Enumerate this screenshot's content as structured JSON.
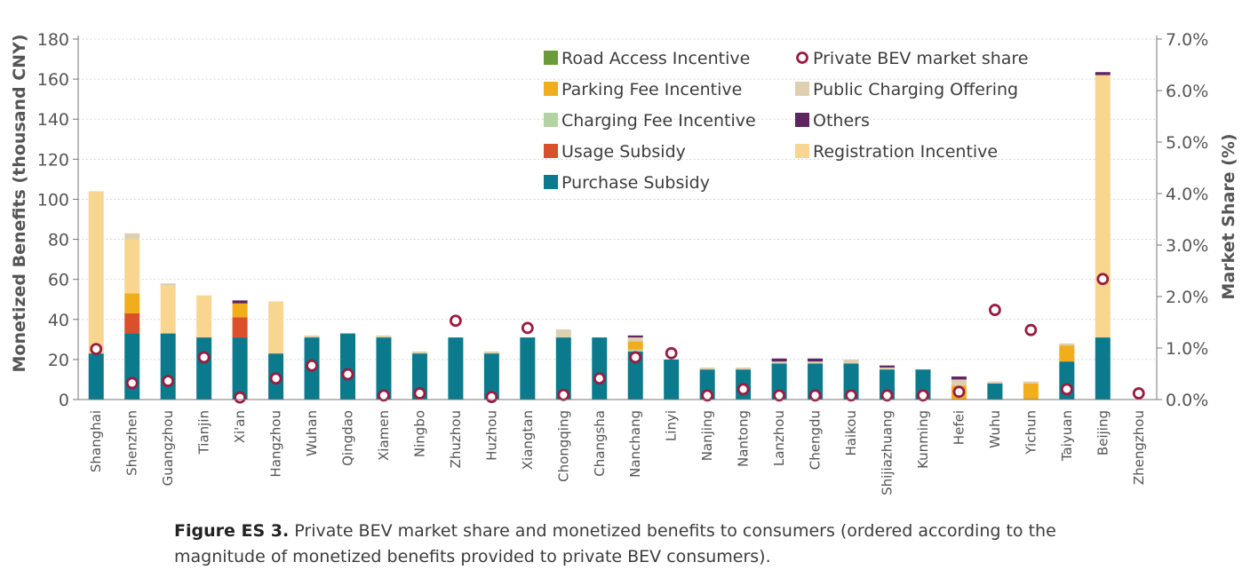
{
  "caption": {
    "label": "Figure ES 3.",
    "text": "Private BEV market share and monetized benefits to consumers (ordered according to the magnitude of monetized benefits provided to private BEV consumers)."
  },
  "colors": {
    "Purchase Subsidy": "#0b7a8c",
    "Usage Subsidy": "#d9502b",
    "Charging Fee Incentive": "#b4d3a3",
    "Parking Fee Incentive": "#f2ad1d",
    "Road Access Incentive": "#6a9a3a",
    "Registration Incentive": "#f8d690",
    "Public Charging Offering": "#ddcfb0",
    "Others": "#5e2561",
    "Private BEV market share": "#9b1b3f"
  },
  "chart_data": {
    "type": "bar",
    "stacked": true,
    "xlabel": "",
    "ylabel": "Monetized Benefits (thousand CNY)",
    "y2label": "Market Share (%)",
    "ylim": [
      0,
      180
    ],
    "yticks": [
      0,
      20,
      40,
      60,
      80,
      100,
      120,
      140,
      160,
      180
    ],
    "y2lim": [
      0,
      7.0
    ],
    "y2ticks": [
      "0.0%",
      "1.0%",
      "2.0%",
      "3.0%",
      "4.0%",
      "5.0%",
      "6.0%",
      "7.0%"
    ],
    "grid": true,
    "legend_position": "top-right",
    "legend_order": [
      "Road Access Incentive",
      "Private BEV market share",
      "Parking Fee Incentive",
      "Public Charging Offering",
      "Charging Fee Incentive",
      "Others",
      "Usage Subsidy",
      "Registration Incentive",
      "Purchase Subsidy"
    ],
    "categories": [
      "Shanghai",
      "Shenzhen",
      "Guangzhou",
      "Tianjin",
      "Xi'an",
      "Hangzhou",
      "Wuhan",
      "Qingdao",
      "Xiamen",
      "Ningbo",
      "Zhuzhou",
      "Huzhou",
      "Xiangtan",
      "Chongqing",
      "Changsha",
      "Nanchang",
      "Linyi",
      "Nanjing",
      "Nantong",
      "Lanzhou",
      "Chengdu",
      "Haikou",
      "Shijiazhuang",
      "Kunming",
      "Hefei",
      "Wuhu",
      "Yichun",
      "Taiyuan",
      "Beijing",
      "Zhengzhou"
    ],
    "series": [
      {
        "name": "Purchase Subsidy",
        "values": [
          23,
          33,
          33,
          31,
          31,
          23,
          31,
          33,
          31,
          23,
          31,
          23,
          31,
          31,
          31,
          24,
          20,
          15,
          15,
          18,
          18,
          18,
          15,
          15,
          0,
          8,
          0,
          19,
          31,
          0
        ]
      },
      {
        "name": "Usage Subsidy",
        "values": [
          0,
          10,
          0,
          0,
          10,
          0,
          0,
          0,
          0,
          0,
          0,
          0,
          0,
          0,
          0,
          0,
          0,
          0,
          0,
          0,
          0,
          0,
          0,
          0,
          0,
          0,
          0,
          0,
          0,
          0
        ]
      },
      {
        "name": "Charging Fee Incentive",
        "values": [
          0,
          0,
          0,
          0,
          0,
          0,
          0,
          0,
          0,
          0,
          0,
          0,
          0,
          0,
          0,
          1,
          0,
          0,
          0,
          0,
          0,
          0,
          0,
          0,
          0,
          0,
          0,
          0,
          0,
          0
        ]
      },
      {
        "name": "Parking Fee Incentive",
        "values": [
          0,
          10,
          0,
          0,
          7,
          0,
          0,
          0,
          0,
          0,
          0,
          0,
          0,
          0,
          0,
          4,
          0,
          0,
          0,
          0,
          0,
          0,
          0,
          0,
          7,
          0,
          8,
          8,
          0,
          0
        ]
      },
      {
        "name": "Road Access Incentive",
        "values": [
          0,
          0,
          0,
          0,
          0,
          0,
          0,
          0,
          0,
          0,
          0,
          0,
          0,
          0,
          0,
          0,
          0,
          0,
          0,
          0,
          0,
          0,
          0,
          0,
          0,
          0,
          0,
          0,
          0,
          0
        ]
      },
      {
        "name": "Registration Incentive",
        "values": [
          81,
          27,
          24,
          21,
          0,
          26,
          0,
          0,
          0,
          0,
          0,
          0,
          0,
          0,
          0,
          0,
          0,
          0,
          0,
          0,
          0,
          0,
          0,
          0,
          0,
          0,
          0,
          0,
          131,
          0
        ]
      },
      {
        "name": "Public Charging Offering",
        "values": [
          0,
          3,
          1,
          0,
          0,
          0,
          1,
          0,
          1,
          1,
          0,
          1,
          0,
          4,
          0,
          2,
          0,
          1,
          1,
          1,
          1,
          2,
          1,
          0,
          3,
          1,
          1,
          1,
          0,
          0
        ]
      },
      {
        "name": "Others",
        "values": [
          0,
          0,
          0,
          0,
          1.5,
          0,
          0,
          0,
          0,
          0,
          0,
          0,
          0,
          0,
          0,
          1,
          0,
          0,
          0,
          1.5,
          1.5,
          0,
          1,
          0,
          1.5,
          0,
          0,
          0,
          1.5,
          0
        ]
      }
    ],
    "market_share": {
      "name": "Private BEV market share",
      "values": [
        0.98,
        0.32,
        0.36,
        0.82,
        0.04,
        0.41,
        0.66,
        0.49,
        0.08,
        0.12,
        1.53,
        0.05,
        1.39,
        0.09,
        0.41,
        0.82,
        0.9,
        0.08,
        0.2,
        0.08,
        0.08,
        0.08,
        0.08,
        0.08,
        0.15,
        1.74,
        1.35,
        0.2,
        2.34,
        0.12
      ]
    }
  }
}
